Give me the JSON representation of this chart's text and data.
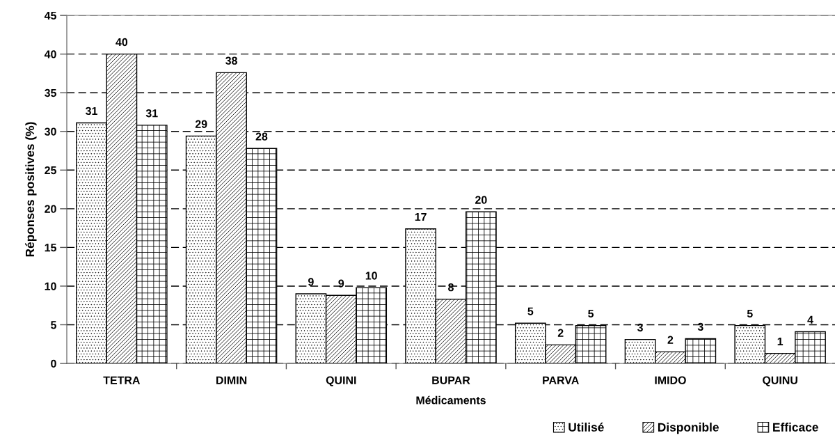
{
  "chart_data": {
    "type": "bar",
    "xlabel": "Médicaments",
    "ylabel": "Réponses positives (%)",
    "categories": [
      "TETRA",
      "DIMIN",
      "QUINI",
      "BUPAR",
      "PARVA",
      "IMIDO",
      "QUINU"
    ],
    "series": [
      {
        "name": "Utilisé",
        "color": "#000000",
        "values": [
          31.1,
          29.4,
          9.0,
          17.4,
          5.2,
          3.1,
          4.9
        ],
        "value_labels": [
          "31",
          "29",
          "9",
          "17",
          "5",
          "3",
          "5"
        ]
      },
      {
        "name": "Disponible",
        "color": "#000000",
        "values": [
          40.0,
          37.6,
          8.8,
          8.3,
          2.4,
          1.5,
          1.3
        ],
        "value_labels": [
          "40",
          "38",
          "9",
          "8",
          "2",
          "2",
          "1"
        ]
      },
      {
        "name": "Efficace",
        "color": "#000000",
        "values": [
          30.8,
          27.8,
          9.8,
          19.6,
          4.9,
          3.2,
          4.1
        ],
        "value_labels": [
          "31",
          "28",
          "10",
          "20",
          "5",
          "3",
          "4"
        ]
      }
    ],
    "ylim": [
      0,
      45
    ],
    "yticks": [
      0,
      5,
      10,
      15,
      20,
      25,
      30,
      35,
      40,
      45
    ],
    "grid": "y",
    "legend": "bottom right"
  }
}
